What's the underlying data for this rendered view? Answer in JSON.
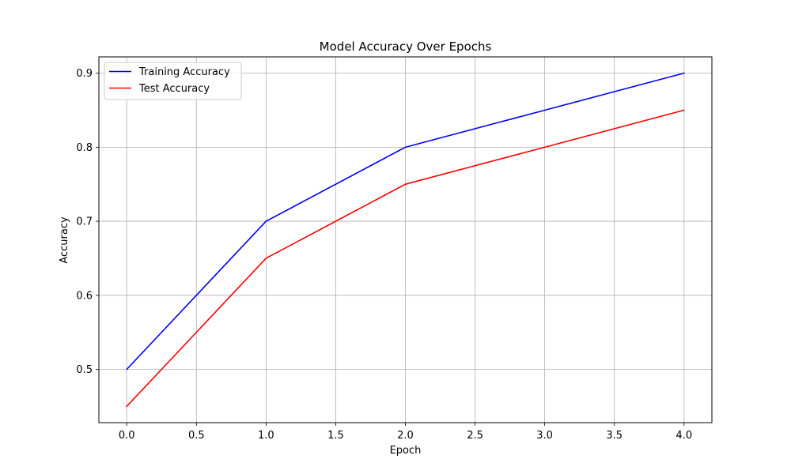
{
  "chart_data": {
    "type": "line",
    "title": "Model Accuracy Over Epochs",
    "xlabel": "Epoch",
    "ylabel": "Accuracy",
    "x": [
      0,
      1,
      2,
      3,
      4
    ],
    "xlim": [
      -0.2,
      4.2
    ],
    "ylim": [
      0.428,
      0.922
    ],
    "xticks": [
      0.0,
      0.5,
      1.0,
      1.5,
      2.0,
      2.5,
      3.0,
      3.5,
      4.0
    ],
    "xtick_labels": [
      "0.0",
      "0.5",
      "1.0",
      "1.5",
      "2.0",
      "2.5",
      "3.0",
      "3.5",
      "4.0"
    ],
    "yticks": [
      0.5,
      0.6,
      0.7,
      0.8,
      0.9
    ],
    "ytick_labels": [
      "0.5",
      "0.6",
      "0.7",
      "0.8",
      "0.9"
    ],
    "grid": true,
    "legend_position": "top-left",
    "series": [
      {
        "name": "Training Accuracy",
        "color": "#0000ff",
        "values": [
          0.5,
          0.7,
          0.8,
          0.85,
          0.9
        ]
      },
      {
        "name": "Test Accuracy",
        "color": "#ff0000",
        "values": [
          0.45,
          0.65,
          0.75,
          0.8,
          0.85
        ]
      }
    ]
  }
}
